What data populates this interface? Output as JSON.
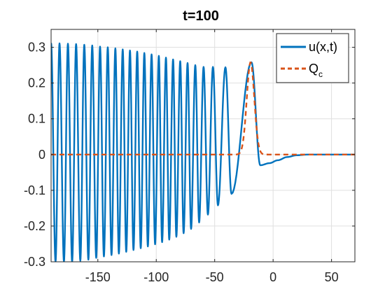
{
  "chart_data": {
    "type": "line",
    "title": "t=100",
    "xlabel": "",
    "ylabel": "",
    "xlim": [
      -190,
      70
    ],
    "ylim": [
      -0.3,
      0.35
    ],
    "xticks": [
      -150,
      -100,
      -50,
      0,
      50
    ],
    "xtick_labels": [
      "-150",
      "-100",
      "-50",
      "0",
      "50"
    ],
    "yticks": [
      -0.3,
      -0.2,
      -0.1,
      0,
      0.1,
      0.2,
      0.3
    ],
    "ytick_labels": [
      "-0.3",
      "-0.2",
      "-0.1",
      "0",
      "0.1",
      "0.2",
      "0.3"
    ],
    "grid": true,
    "legend_position": "top-right",
    "series": [
      {
        "name": "u(x,t)",
        "color": "#0072BD",
        "style": "solid",
        "maxima": [
          [
            -190.0,
            0.312
          ],
          [
            -182.8,
            0.311
          ],
          [
            -175.6,
            0.31
          ],
          [
            -168.6,
            0.309
          ],
          [
            -161.6,
            0.307
          ],
          [
            -154.8,
            0.305
          ],
          [
            -148.1,
            0.302
          ],
          [
            -141.5,
            0.3
          ],
          [
            -135.0,
            0.297
          ],
          [
            -128.7,
            0.294
          ],
          [
            -122.5,
            0.291
          ],
          [
            -116.3,
            0.288
          ],
          [
            -110.2,
            0.284
          ],
          [
            -104.0,
            0.28
          ],
          [
            -97.8,
            0.276
          ],
          [
            -91.7,
            0.271
          ],
          [
            -85.6,
            0.266
          ],
          [
            -79.5,
            0.261
          ],
          [
            -73.2,
            0.256
          ],
          [
            -66.6,
            0.25
          ],
          [
            -59.5,
            0.245
          ],
          [
            -51.5,
            0.245
          ],
          [
            -40.8,
            0.244
          ],
          [
            -18.5,
            0.258
          ]
        ],
        "minima": [
          [
            -186.2,
            -0.3
          ],
          [
            -179.0,
            -0.3
          ],
          [
            -172.0,
            -0.3
          ],
          [
            -165.0,
            -0.297
          ],
          [
            -158.1,
            -0.294
          ],
          [
            -151.4,
            -0.289
          ],
          [
            -144.8,
            -0.285
          ],
          [
            -138.3,
            -0.281
          ],
          [
            -132.0,
            -0.277
          ],
          [
            -125.7,
            -0.272
          ],
          [
            -119.5,
            -0.267
          ],
          [
            -113.3,
            -0.262
          ],
          [
            -107.2,
            -0.257
          ],
          [
            -101.0,
            -0.251
          ],
          [
            -95.0,
            -0.245
          ],
          [
            -88.9,
            -0.238
          ],
          [
            -82.8,
            -0.23
          ],
          [
            -76.6,
            -0.22
          ],
          [
            -70.2,
            -0.208
          ],
          [
            -63.3,
            -0.19
          ],
          [
            -55.8,
            -0.168
          ],
          [
            -47.2,
            -0.142
          ],
          [
            -35.6,
            -0.11
          ],
          [
            -11.0,
            -0.03
          ]
        ],
        "tail": [
          [
            -3,
            -0.024
          ],
          [
            4,
            -0.016
          ],
          [
            12,
            -0.007
          ],
          [
            20,
            -0.002
          ],
          [
            30,
            0.0
          ],
          [
            70,
            0.0
          ]
        ]
      },
      {
        "name": "Q",
        "name_subscript": "c",
        "color": "#D95319",
        "style": "dashed",
        "baseline": 0,
        "peak_x": -19.3,
        "peak_y": 0.258,
        "width": 4.6
      }
    ]
  }
}
